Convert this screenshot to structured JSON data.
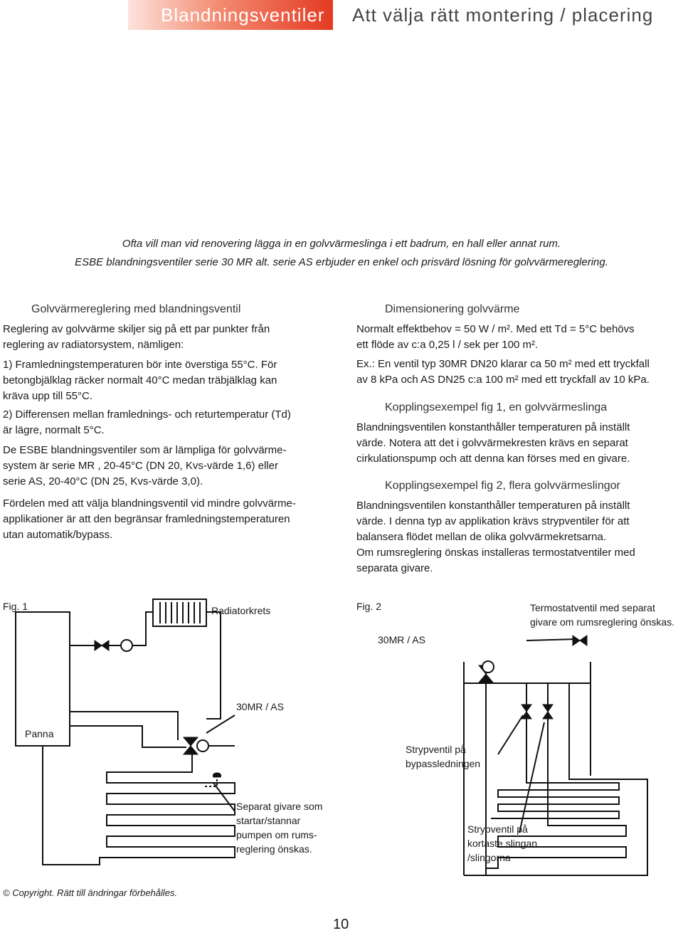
{
  "header": {
    "tab": "Blandningsventiler",
    "title": "Att välja rätt montering / placering"
  },
  "intro": [
    "Ofta vill man vid renovering lägga in en golvvärmeslinga i ett badrum, en hall eller annat rum.",
    "ESBE blandningsventiler serie 30 MR alt. serie AS erbjuder en enkel och prisvärd lösning för golvvärmereglering."
  ],
  "left": {
    "heading": "Golvvärmereglering med blandningsventil",
    "paragraphs": [
      [
        "Reglering av golvvärme skiljer sig på ett par punkter från",
        "reglering av radiatorsystem, nämligen:"
      ],
      [
        "1) Framledningstemperaturen bör inte överstiga 55°C. För",
        "betongbjälklag räcker normalt 40°C medan träbjälklag kan",
        "kräva upp till 55°C."
      ],
      [
        "2) Differensen mellan framlednings- och returtemperatur (Td)",
        "är lägre, normalt 5°C."
      ],
      [
        "De ESBE blandningsventiler som är lämpliga för golvvärme-",
        "system är serie MR , 20-45°C (DN 20, Kvs-värde 1,6) eller",
        "serie AS, 20-40°C (DN 25, Kvs-värde 3,0)."
      ],
      [
        "Fördelen med att välja blandningsventil vid mindre golvvärme-",
        "applikationer är att den begränsar framledningstemperaturen",
        "utan automatik/bypass."
      ]
    ]
  },
  "right": {
    "sections": [
      {
        "heading": "Dimensionering golvvärme",
        "paragraphs": [
          [
            "Normalt effektbehov = 50 W / m². Med ett Td = 5°C behövs",
            "ett flöde av c:a 0,25 l / sek per 100 m²."
          ],
          [
            "Ex.: En ventil typ 30MR DN20 klarar ca 50 m² med ett tryckfall",
            "av 8 kPa och AS DN25 c:a 100 m² med ett tryckfall av 10 kPa."
          ]
        ]
      },
      {
        "heading": "Kopplingsexempel fig 1, en golvvärmeslinga",
        "paragraphs": [
          [
            "Blandningsventilen konstanthåller temperaturen på inställt",
            "värde. Notera att det i golvvärmekresten krävs en separat",
            "cirkulationspump och att denna kan förses med en givare."
          ]
        ]
      },
      {
        "heading": "Kopplingsexempel fig 2, flera golvvärmeslingor",
        "paragraphs": [
          [
            "Blandningsventilen konstanthåller temperaturen på inställt",
            "värde. I denna typ av applikation krävs strypventiler för att",
            "balansera flödet mellan de olika golvvärmekretsarna.",
            "Om rumsreglering önskas installeras termostatventiler med",
            "separata givare."
          ]
        ]
      }
    ]
  },
  "figure1": {
    "caption": "Fig. 1",
    "labels": [
      [
        "Radiatorkrets"
      ],
      [
        "30MR / AS"
      ],
      [
        "Panna"
      ],
      [
        "Separat givare som",
        "startar/stannar",
        "pumpen om rums-",
        "reglering önskas."
      ]
    ]
  },
  "figure2": {
    "caption": "Fig. 2",
    "labels": [
      [
        "Termostatventil med separat",
        "givare om rumsreglering önskas."
      ],
      [
        "30MR / AS"
      ],
      [
        "Strypventil på",
        "bypassledningen"
      ],
      [
        "Strypventil på",
        "kortaste slingan",
        "/slingorna"
      ]
    ]
  },
  "footer": {
    "copyright": "© Copyright. Rätt till ändringar förbehålles.",
    "page": "10"
  }
}
